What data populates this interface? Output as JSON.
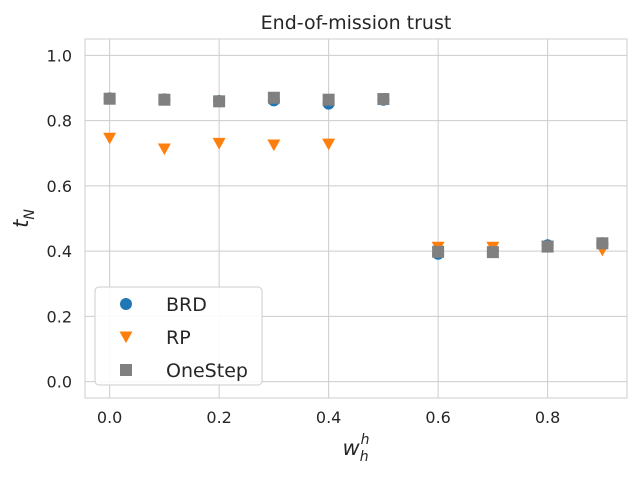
{
  "chart_data": {
    "type": "scatter",
    "title": "End-of-mission trust",
    "xlabel": {
      "base": "w",
      "sub": "h",
      "sup": "h"
    },
    "ylabel": {
      "base": "t",
      "sub": "N"
    },
    "xlim": [
      -0.045,
      0.945
    ],
    "ylim": [
      -0.05,
      1.05
    ],
    "xticks": [
      0.0,
      0.2,
      0.4,
      0.6,
      0.8
    ],
    "xtick_labels": [
      "0.0",
      "0.2",
      "0.4",
      "0.6",
      "0.8"
    ],
    "yticks": [
      0.0,
      0.2,
      0.4,
      0.6,
      0.8,
      1.0
    ],
    "ytick_labels": [
      "0.0",
      "0.2",
      "0.4",
      "0.6",
      "0.8",
      "1.0"
    ],
    "grid": true,
    "legend_position": "lower-left",
    "series": [
      {
        "name": "BRD",
        "marker": "circle",
        "color": "#1f77b4",
        "x": [
          0.0,
          0.1,
          0.2,
          0.3,
          0.4,
          0.5,
          0.6,
          0.7,
          0.8,
          0.9
        ],
        "y": [
          0.868,
          0.865,
          0.86,
          0.862,
          0.852,
          0.864,
          0.392,
          0.4,
          0.418,
          0.424
        ]
      },
      {
        "name": "RP",
        "marker": "triangle-down",
        "color": "#ff7f0e",
        "x": [
          0.0,
          0.1,
          0.2,
          0.3,
          0.4,
          0.6,
          0.7,
          0.8,
          0.9
        ],
        "y": [
          0.746,
          0.713,
          0.73,
          0.725,
          0.728,
          0.412,
          0.412,
          0.415,
          0.403
        ]
      },
      {
        "name": "OneStep",
        "marker": "square",
        "color": "#808080",
        "x": [
          0.0,
          0.1,
          0.2,
          0.3,
          0.4,
          0.5,
          0.6,
          0.7,
          0.8,
          0.9
        ],
        "y": [
          0.867,
          0.864,
          0.859,
          0.87,
          0.864,
          0.866,
          0.398,
          0.397,
          0.414,
          0.424
        ]
      }
    ]
  }
}
